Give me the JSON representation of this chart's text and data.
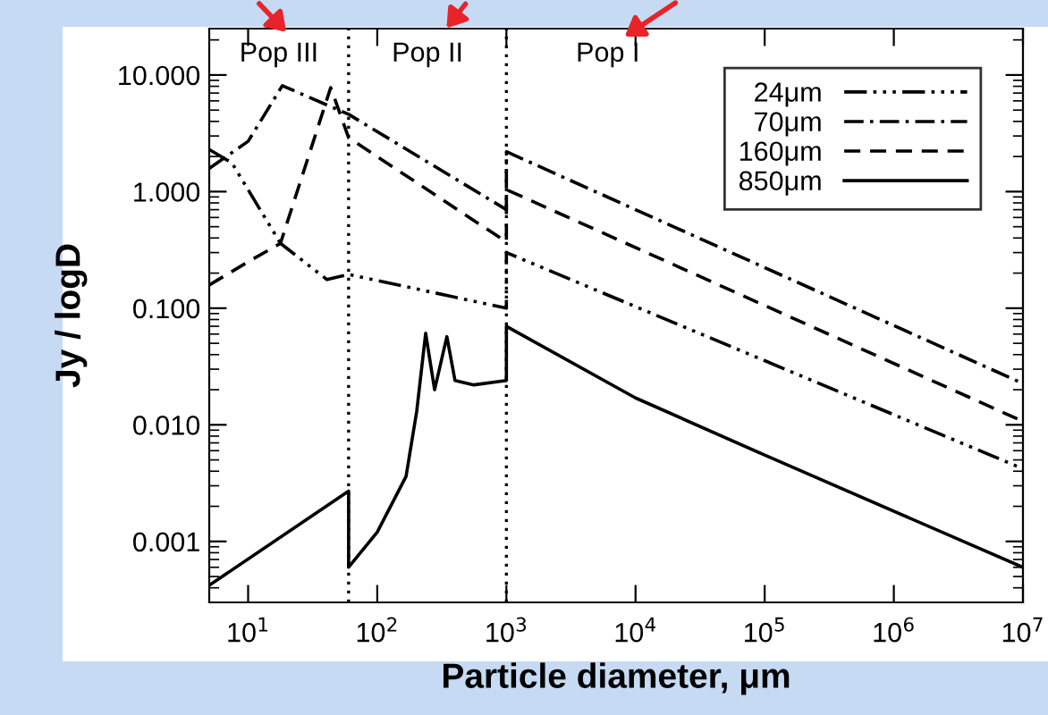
{
  "chart_data": {
    "type": "line",
    "xlabel": "Particle diameter, μm",
    "ylabel": "Jy / logD",
    "log": "xy",
    "xlim": [
      5,
      10000000
    ],
    "ylim": [
      0.0003,
      25
    ],
    "xticks": [
      {
        "value": 10,
        "label": "10$^{1}$"
      },
      {
        "value": 100,
        "label": "10$^{2}$"
      },
      {
        "value": 1000,
        "label": "10$^{3}$"
      },
      {
        "value": 10000,
        "label": "10$^{4}$"
      },
      {
        "value": 100000,
        "label": "10$^{5}$"
      },
      {
        "value": 1000000,
        "label": "10$^{6}$"
      },
      {
        "value": 10000000,
        "label": "10$^{7}$"
      }
    ],
    "yticks": [
      {
        "value": 0.001,
        "label": "0.001"
      },
      {
        "value": 0.01,
        "label": "0.010"
      },
      {
        "value": 0.1,
        "label": "0.100"
      },
      {
        "value": 1,
        "label": "1.000"
      },
      {
        "value": 10,
        "label": "10.000"
      }
    ],
    "grid": false,
    "legend": "top right",
    "series": [
      {
        "name": "24μm",
        "color": "#000000",
        "line_style": "dashdotdotdot",
        "x": [
          5,
          7.5,
          17.8,
          40.8,
          60,
          1000,
          1000,
          10000000
        ],
        "values": [
          2.3,
          1.76,
          0.36,
          0.176,
          0.195,
          0.1,
          0.3,
          0.0042
        ]
      },
      {
        "name": "70μm",
        "color": "#000000",
        "line_style": "dashdot",
        "x": [
          5,
          10,
          18.4,
          60,
          1000,
          1000,
          10000000
        ],
        "values": [
          1.58,
          2.7,
          8.1,
          4.6,
          0.7,
          2.2,
          0.0226
        ]
      },
      {
        "name": "160μm",
        "color": "#000000",
        "line_style": "dashed",
        "x": [
          5,
          10,
          17.8,
          43.6,
          60,
          1000,
          1000,
          10000000
        ],
        "values": [
          0.158,
          0.25,
          0.36,
          7.8,
          2.9,
          0.37,
          1.04,
          0.0107
        ]
      },
      {
        "name": "850μm",
        "color": "#000000",
        "line_style": "solid",
        "x": [
          5,
          60,
          60,
          100,
          167,
          202,
          237,
          278,
          346,
          400,
          560,
          1000,
          1000,
          10000,
          100000,
          10000000
        ],
        "values": [
          0.00042,
          0.0027,
          0.0006,
          0.0012,
          0.0036,
          0.013,
          0.061,
          0.02,
          0.057,
          0.024,
          0.022,
          0.024,
          0.07,
          0.017,
          0.0055,
          0.0006
        ]
      }
    ],
    "ref_lines": [
      {
        "axis": "x",
        "value": 60,
        "color": "#000000",
        "line_style": "dotted"
      },
      {
        "axis": "x",
        "value": 1000,
        "color": "#000000",
        "line_style": "dotted"
      }
    ],
    "annotations": [
      "Pop III",
      "Pop II",
      "Pop I"
    ]
  }
}
